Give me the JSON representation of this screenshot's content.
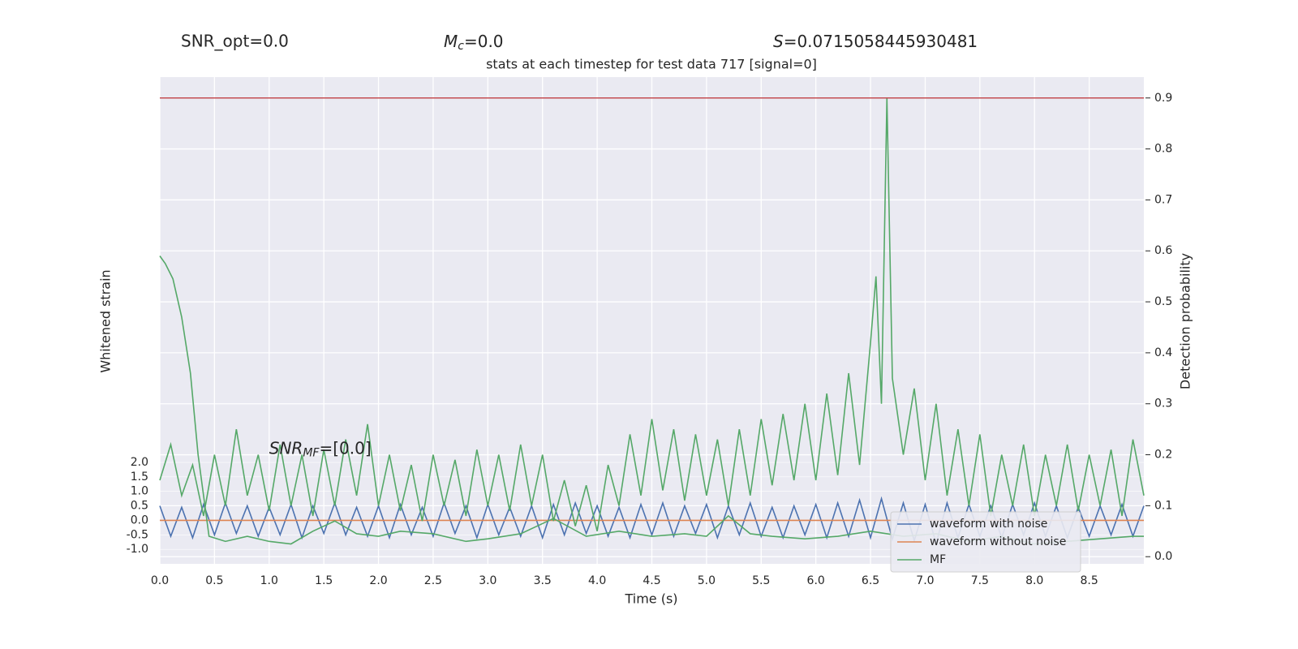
{
  "header": {
    "snr_opt": "SNR_opt=0.0",
    "mc_symbol": "M",
    "mc_sub": "c",
    "mc_value": "=0.0",
    "s_symbol": "S",
    "s_value": "=0.0715058445930481"
  },
  "chart_data": {
    "type": "line",
    "title": "stats at each timestep for test data 717 [signal=0]",
    "xlabel": "Time (s)",
    "ylabel": "Whitened strain",
    "y2label": "Detection probability",
    "annotation": {
      "symbol": "SNR",
      "sub": "MF",
      "text": "=[0.0]",
      "x": 1.0,
      "y": 0.2
    },
    "xlim": [
      0,
      9.0
    ],
    "xticks": [
      {
        "value": 0,
        "label": "0.0"
      },
      0.5,
      {
        "value": 1,
        "label": "1.0"
      },
      1.5,
      {
        "value": 2,
        "label": "2.0"
      },
      2.5,
      {
        "value": 3,
        "label": "3.0"
      },
      3.5,
      {
        "value": 4,
        "label": "4.0"
      },
      4.5,
      {
        "value": 5,
        "label": "5.0"
      },
      5.5,
      {
        "value": 6,
        "label": "6.0"
      },
      6.5,
      {
        "value": 7,
        "label": "7.0"
      },
      7.5,
      {
        "value": 8,
        "label": "8.0"
      },
      8.5
    ],
    "ylim": [
      -1.5,
      15.3
    ],
    "yticks": [
      {
        "value": -1,
        "label": "-1.0"
      },
      -0.5,
      {
        "value": 0,
        "label": "0.0"
      },
      0.5,
      {
        "value": 1,
        "label": "1.0"
      },
      1.5,
      {
        "value": 2,
        "label": "2.0"
      }
    ],
    "y2lim": [
      -0.014,
      0.941
    ],
    "y2ticks": [
      {
        "value": 0,
        "label": "0.0"
      },
      0.1,
      0.2,
      0.3,
      0.4,
      0.5,
      0.6,
      0.7,
      0.8,
      0.9
    ],
    "grid": true,
    "threshold": {
      "value": 0.9,
      "color": "#c44e52",
      "axis": "y2"
    },
    "legend": "lower right",
    "series": [
      {
        "name": "waveform with noise",
        "color": "#4c72b0",
        "axis": "y",
        "x": [
          0.0,
          0.1,
          0.2,
          0.3,
          0.4,
          0.5,
          0.6,
          0.7,
          0.8,
          0.9,
          1.0,
          1.1,
          1.2,
          1.3,
          1.4,
          1.5,
          1.6,
          1.7,
          1.8,
          1.9,
          2.0,
          2.1,
          2.2,
          2.3,
          2.4,
          2.5,
          2.6,
          2.7,
          2.8,
          2.9,
          3.0,
          3.1,
          3.2,
          3.3,
          3.4,
          3.5,
          3.6,
          3.7,
          3.8,
          3.9,
          4.0,
          4.1,
          4.2,
          4.3,
          4.4,
          4.5,
          4.6,
          4.7,
          4.8,
          4.9,
          5.0,
          5.1,
          5.2,
          5.3,
          5.4,
          5.5,
          5.6,
          5.7,
          5.8,
          5.9,
          6.0,
          6.1,
          6.2,
          6.3,
          6.4,
          6.5,
          6.6,
          6.7,
          6.8,
          6.9,
          7.0,
          7.1,
          7.2,
          7.3,
          7.4,
          7.5,
          7.6,
          7.7,
          7.8,
          7.9,
          8.0,
          8.1,
          8.2,
          8.3,
          8.4,
          8.5,
          8.6,
          8.7,
          8.8,
          8.9,
          9.0
        ],
        "values": [
          0.5,
          -0.55,
          0.45,
          -0.6,
          0.55,
          -0.5,
          0.6,
          -0.45,
          0.5,
          -0.55,
          0.45,
          -0.5,
          0.55,
          -0.6,
          0.5,
          -0.45,
          0.6,
          -0.5,
          0.45,
          -0.55,
          0.5,
          -0.6,
          0.55,
          -0.5,
          0.45,
          -0.55,
          0.6,
          -0.45,
          0.5,
          -0.6,
          0.55,
          -0.5,
          0.45,
          -0.55,
          0.5,
          -0.6,
          0.55,
          -0.5,
          0.6,
          -0.45,
          0.5,
          -0.55,
          0.45,
          -0.6,
          0.55,
          -0.5,
          0.6,
          -0.55,
          0.5,
          -0.45,
          0.55,
          -0.6,
          0.5,
          -0.5,
          0.6,
          -0.55,
          0.45,
          -0.6,
          0.5,
          -0.5,
          0.55,
          -0.6,
          0.6,
          -0.55,
          0.7,
          -0.6,
          0.75,
          -0.65,
          0.6,
          -0.7,
          0.55,
          -0.8,
          0.6,
          -0.6,
          0.55,
          -0.55,
          0.5,
          -0.6,
          0.55,
          -0.5,
          0.6,
          -0.55,
          0.5,
          -0.6,
          0.45,
          -0.55,
          0.5,
          -0.5,
          0.55,
          -0.55,
          0.5
        ]
      },
      {
        "name": "waveform without noise",
        "color": "#dd8452",
        "axis": "y",
        "x": [
          0.0,
          9.0
        ],
        "values": [
          0,
          0
        ]
      },
      {
        "name": "MF",
        "color": "#55a868",
        "axis": "y2",
        "x": [
          0,
          0.05,
          0.12,
          0.2,
          0.28,
          0.35,
          0.45,
          0.6,
          0.8,
          1.0,
          1.2,
          1.4,
          1.6,
          1.8,
          2.0,
          2.2,
          2.5,
          2.8,
          3.0,
          3.3,
          3.6,
          3.9,
          4.2,
          4.5,
          4.8,
          5.0,
          5.2,
          5.4,
          5.6,
          5.9,
          6.2,
          6.5,
          6.8,
          7.1,
          7.4,
          7.7,
          8.0,
          8.3,
          8.6,
          8.9,
          9.0
        ],
        "values": [
          0.59,
          0.575,
          0.545,
          0.47,
          0.36,
          0.2,
          0.04,
          0.03,
          0.04,
          0.03,
          0.025,
          0.05,
          0.07,
          0.045,
          0.04,
          0.05,
          0.045,
          0.03,
          0.035,
          0.045,
          0.075,
          0.04,
          0.05,
          0.04,
          0.045,
          0.04,
          0.08,
          0.045,
          0.04,
          0.035,
          0.04,
          0.05,
          0.04,
          0.045,
          0.03,
          0.04,
          0.025,
          0.03,
          0.035,
          0.04,
          0.04
        ]
      },
      {
        "color": "#55a868",
        "axis": "y2",
        "x": [
          0.0,
          0.1,
          0.2,
          0.3,
          0.4,
          0.5,
          0.6,
          0.7,
          0.8,
          0.9,
          1.0,
          1.1,
          1.2,
          1.3,
          1.4,
          1.5,
          1.6,
          1.7,
          1.8,
          1.9,
          2.0,
          2.1,
          2.2,
          2.3,
          2.4,
          2.5,
          2.6,
          2.7,
          2.8,
          2.9,
          3.0,
          3.1,
          3.2,
          3.3,
          3.4,
          3.5,
          3.6,
          3.7,
          3.8,
          3.9,
          4.0,
          4.1,
          4.2,
          4.3,
          4.4,
          4.5,
          4.6,
          4.7,
          4.8,
          4.9,
          5.0,
          5.1,
          5.2,
          5.3,
          5.4,
          5.5,
          5.6,
          5.7,
          5.8,
          5.9,
          6.0,
          6.1,
          6.2,
          6.3,
          6.4,
          6.5,
          6.55,
          6.6,
          6.65,
          6.7,
          6.8,
          6.9,
          7.0,
          7.1,
          7.2,
          7.3,
          7.4,
          7.5,
          7.6,
          7.7,
          7.8,
          7.9,
          8.0,
          8.1,
          8.2,
          8.3,
          8.4,
          8.5,
          8.6,
          8.7,
          8.8,
          8.9,
          9.0
        ],
        "values": [
          0.15,
          0.22,
          0.12,
          0.18,
          0.08,
          0.2,
          0.1,
          0.25,
          0.12,
          0.2,
          0.09,
          0.22,
          0.1,
          0.2,
          0.08,
          0.21,
          0.1,
          0.23,
          0.12,
          0.26,
          0.1,
          0.2,
          0.09,
          0.18,
          0.07,
          0.2,
          0.1,
          0.19,
          0.08,
          0.21,
          0.1,
          0.2,
          0.09,
          0.22,
          0.1,
          0.2,
          0.07,
          0.15,
          0.06,
          0.14,
          0.05,
          0.18,
          0.1,
          0.24,
          0.12,
          0.27,
          0.13,
          0.25,
          0.11,
          0.24,
          0.12,
          0.23,
          0.1,
          0.25,
          0.12,
          0.27,
          0.14,
          0.28,
          0.15,
          0.3,
          0.15,
          0.32,
          0.16,
          0.36,
          0.18,
          0.42,
          0.55,
          0.3,
          0.9,
          0.35,
          0.2,
          0.33,
          0.15,
          0.3,
          0.12,
          0.25,
          0.1,
          0.24,
          0.08,
          0.2,
          0.1,
          0.22,
          0.08,
          0.2,
          0.1,
          0.22,
          0.09,
          0.2,
          0.1,
          0.21,
          0.08,
          0.23,
          0.12
        ]
      }
    ]
  }
}
